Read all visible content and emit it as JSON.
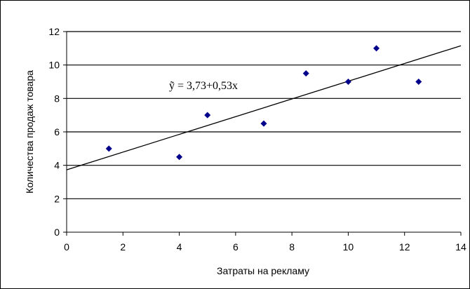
{
  "chart_data": {
    "type": "scatter",
    "title": "",
    "xlabel": "Затраты на рекламу",
    "ylabel": "Количества продаж товара",
    "xlim": [
      0,
      14
    ],
    "ylim": [
      0,
      12
    ],
    "xticks": [
      0,
      2,
      4,
      6,
      8,
      10,
      12,
      14
    ],
    "yticks": [
      0,
      2,
      4,
      6,
      8,
      10,
      12
    ],
    "xtick_labels": [
      "0",
      "2",
      "4",
      "6",
      "8",
      "10",
      "12",
      "14"
    ],
    "ytick_labels": [
      "0",
      "2",
      "4",
      "6",
      "8",
      "10",
      "12"
    ],
    "grid": "horizontal",
    "legend": "none",
    "points": [
      {
        "x": 1.5,
        "y": 5.0
      },
      {
        "x": 4.0,
        "y": 4.5
      },
      {
        "x": 5.0,
        "y": 7.0
      },
      {
        "x": 7.0,
        "y": 6.5
      },
      {
        "x": 8.5,
        "y": 9.5
      },
      {
        "x": 10.0,
        "y": 9.0
      },
      {
        "x": 11.0,
        "y": 11.0
      },
      {
        "x": 12.5,
        "y": 9.0
      }
    ],
    "trendline": {
      "intercept": 3.73,
      "slope": 0.53
    },
    "annotation": "ỹ = 3,73+0,53x",
    "colors": {
      "point": "#00008b",
      "line": "#000000",
      "grid": "#000000"
    }
  }
}
